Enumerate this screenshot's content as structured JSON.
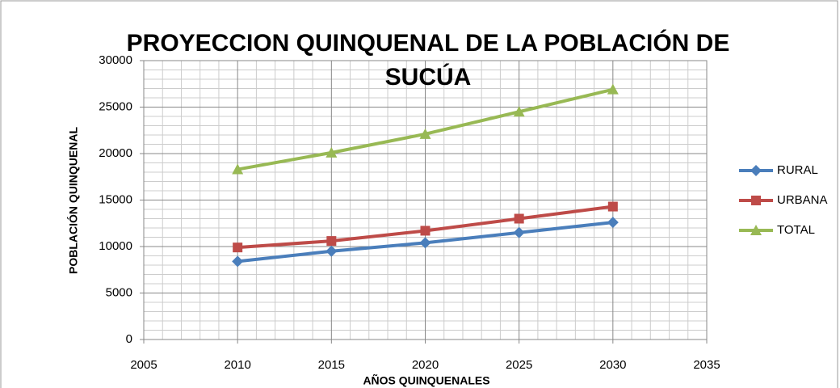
{
  "chart_data": {
    "type": "line",
    "title": "PROYECCION QUINQUENAL DE LA POBLACIÓN DE SUCÚA",
    "x_label": "AÑOS QUINQUENALES",
    "y_label": "POBLACIÓN QUINQUENAL",
    "x": [
      2010,
      2015,
      2020,
      2025,
      2030
    ],
    "series": [
      {
        "name": "RURAL",
        "color": "#4a7ebb",
        "marker": "diamond",
        "values": [
          8400,
          9500,
          10400,
          11500,
          12600
        ]
      },
      {
        "name": "URBANA",
        "color": "#be4b48",
        "marker": "square",
        "values": [
          9900,
          10600,
          11700,
          13000,
          14300
        ]
      },
      {
        "name": "TOTAL",
        "color": "#98b954",
        "marker": "triangle",
        "values": [
          18300,
          20100,
          22100,
          24500,
          26900
        ]
      }
    ],
    "xlim": [
      2005,
      2035
    ],
    "xticks": [
      2005,
      2010,
      2015,
      2020,
      2025,
      2030,
      2035
    ],
    "ylim": [
      0,
      30000
    ],
    "yticks": [
      0,
      5000,
      10000,
      15000,
      20000,
      25000,
      30000
    ],
    "grid": true,
    "legend": "right"
  }
}
